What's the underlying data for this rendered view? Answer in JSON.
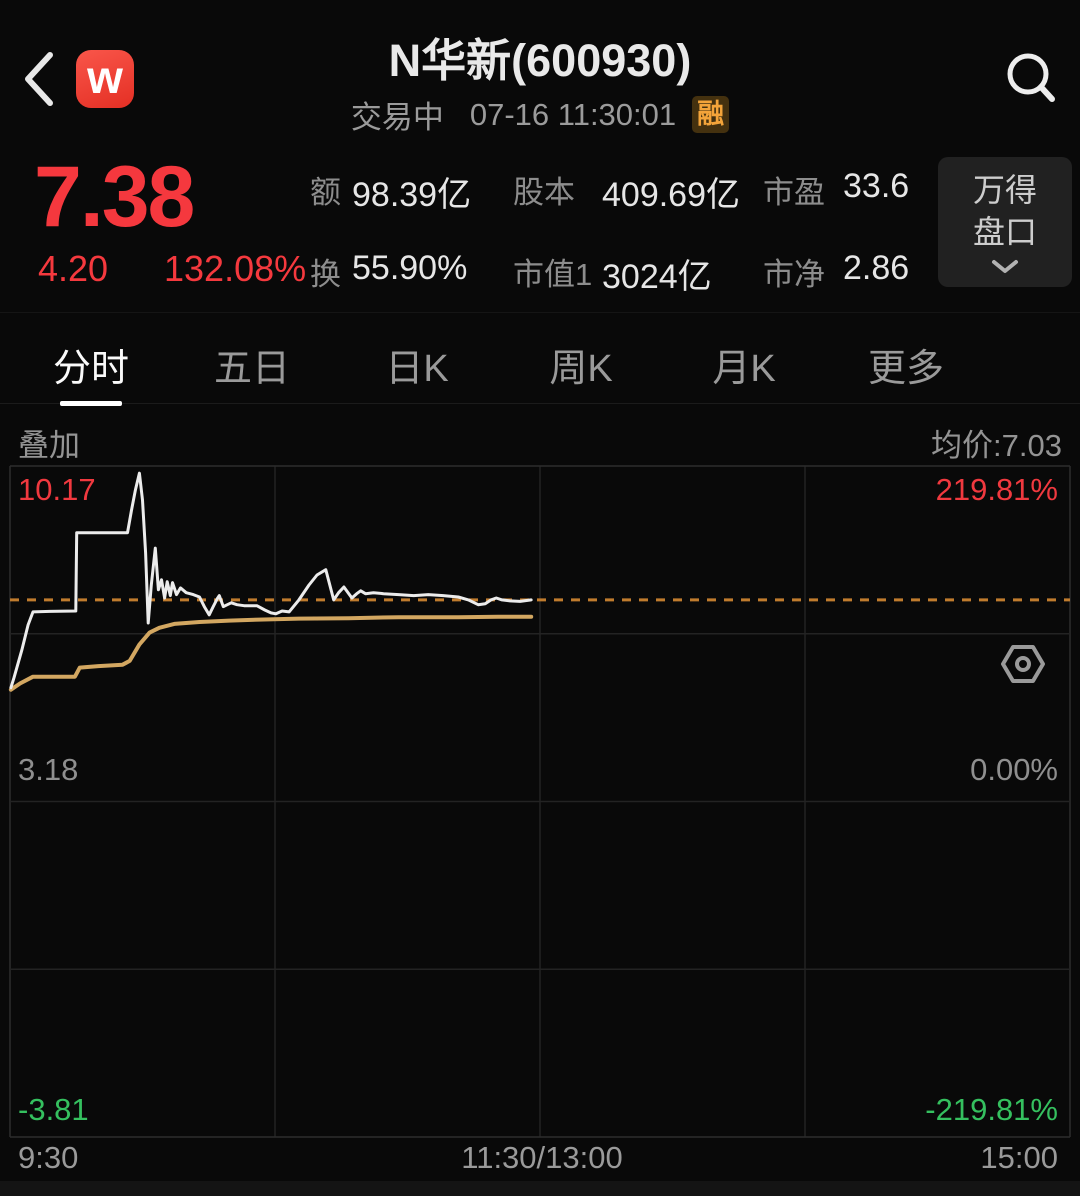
{
  "header": {
    "title": "N华新(600930)",
    "status": "交易中",
    "datetime": "07-16 11:30:01",
    "margin_badge": "融",
    "logo_letter": "w"
  },
  "quote": {
    "price": "7.38",
    "change": "4.20",
    "change_pct": "132.08%",
    "stats": [
      {
        "label": "额",
        "value": "98.39亿"
      },
      {
        "label": "股本",
        "value": "409.69亿"
      },
      {
        "label": "市盈",
        "value": "33.6"
      },
      {
        "label": "换",
        "value": "55.90%"
      },
      {
        "label": "市值1",
        "value": "3024亿"
      },
      {
        "label": "市净",
        "value": "2.86"
      }
    ],
    "panel_button": {
      "line1": "万得",
      "line2": "盘口"
    }
  },
  "tabs": [
    {
      "label": "分时",
      "active": true
    },
    {
      "label": "五日",
      "active": false
    },
    {
      "label": "日K",
      "active": false
    },
    {
      "label": "周K",
      "active": false
    },
    {
      "label": "月K",
      "active": false
    },
    {
      "label": "更多",
      "active": false
    }
  ],
  "overlay_label": "叠加",
  "avg_price_label": "均价:7.03",
  "colors": {
    "up_red": "#f5393e",
    "down_green": "#35c05f",
    "price_line": "#ececec",
    "avg_line": "#d3a761",
    "ref_line": "#c07c2e",
    "badge_orange": "#f3a43a"
  },
  "chart_data": {
    "type": "line",
    "title": "分时图 (intraday minute chart, trading halted at 11:30)",
    "x_axis": {
      "ticks": [
        "9:30",
        "11:30/13:00",
        "15:00"
      ],
      "total_minutes": 240,
      "data_minutes": 120
    },
    "y_axis": {
      "price_max": 10.17,
      "price_base": 3.18,
      "price_min": -3.81,
      "labels": {
        "top_left": "10.17",
        "top_right": "219.81%",
        "mid_left": "3.18",
        "mid_right": "0.00%",
        "bottom_left": "-3.81",
        "bottom_right": "-219.81%"
      }
    },
    "current_price": 7.38,
    "average_price": 7.03,
    "reference_line": {
      "value": 7.38,
      "color": "#c07c2e",
      "style": "dashed"
    },
    "grid": {
      "v_divisions": 4,
      "h_divisions": 4
    },
    "legend_position": "none",
    "series": [
      {
        "name": "price",
        "color": "#ececec",
        "width": 3,
        "points": [
          [
            0.2,
            5.55
          ],
          [
            0.9,
            5.76
          ],
          [
            2.7,
            6.34
          ],
          [
            4.1,
            6.86
          ],
          [
            5.2,
            7.13
          ],
          [
            9,
            7.14
          ],
          [
            14.9,
            7.15
          ],
          [
            15.1,
            8.78
          ],
          [
            26.6,
            8.78
          ],
          [
            27.5,
            9.25
          ],
          [
            28.4,
            9.67
          ],
          [
            29.3,
            10.02
          ],
          [
            30,
            9.46
          ],
          [
            30.7,
            8.36
          ],
          [
            31.3,
            6.9
          ],
          [
            32,
            7.69
          ],
          [
            32.9,
            8.46
          ],
          [
            33.6,
            7.59
          ],
          [
            34.3,
            7.8
          ],
          [
            35,
            7.42
          ],
          [
            35.6,
            7.76
          ],
          [
            36.3,
            7.47
          ],
          [
            36.8,
            7.74
          ],
          [
            37.7,
            7.49
          ],
          [
            38.6,
            7.63
          ],
          [
            39.9,
            7.53
          ],
          [
            41.5,
            7.49
          ],
          [
            42.9,
            7.44
          ],
          [
            44,
            7.24
          ],
          [
            45.1,
            7.07
          ],
          [
            46,
            7.24
          ],
          [
            46.9,
            7.4
          ],
          [
            47.4,
            7.47
          ],
          [
            48.3,
            7.24
          ],
          [
            49.2,
            7.28
          ],
          [
            50.1,
            7.32
          ],
          [
            51.4,
            7.28
          ],
          [
            53,
            7.26
          ],
          [
            55.9,
            7.26
          ],
          [
            57.7,
            7.17
          ],
          [
            59.1,
            7.11
          ],
          [
            60.2,
            7.09
          ],
          [
            61.6,
            7.15
          ],
          [
            63.2,
            7.13
          ],
          [
            65.4,
            7.38
          ],
          [
            67.7,
            7.69
          ],
          [
            69.5,
            7.9
          ],
          [
            71.5,
            8.01
          ],
          [
            72.4,
            7.69
          ],
          [
            73.3,
            7.38
          ],
          [
            74.4,
            7.53
          ],
          [
            75.6,
            7.65
          ],
          [
            76.7,
            7.51
          ],
          [
            77.4,
            7.42
          ],
          [
            78.5,
            7.51
          ],
          [
            79.4,
            7.57
          ],
          [
            80.5,
            7.51
          ],
          [
            82.3,
            7.53
          ],
          [
            84.6,
            7.51
          ],
          [
            88,
            7.49
          ],
          [
            91.4,
            7.47
          ],
          [
            94.7,
            7.49
          ],
          [
            98.1,
            7.47
          ],
          [
            101.5,
            7.44
          ],
          [
            103.8,
            7.38
          ],
          [
            106,
            7.28
          ],
          [
            107.6,
            7.3
          ],
          [
            108.9,
            7.38
          ],
          [
            110.1,
            7.42
          ],
          [
            111.4,
            7.38
          ],
          [
            113.2,
            7.36
          ],
          [
            115.5,
            7.35
          ],
          [
            118,
            7.38
          ]
        ]
      },
      {
        "name": "avg_price",
        "color": "#d3a761",
        "width": 4,
        "points": [
          [
            0.2,
            5.51
          ],
          [
            2.3,
            5.64
          ],
          [
            5.2,
            5.78
          ],
          [
            14.7,
            5.78
          ],
          [
            15.8,
            5.97
          ],
          [
            20,
            6.0
          ],
          [
            25.5,
            6.03
          ],
          [
            27.1,
            6.11
          ],
          [
            29.3,
            6.45
          ],
          [
            31.6,
            6.7
          ],
          [
            33.8,
            6.8
          ],
          [
            37.2,
            6.88
          ],
          [
            42.9,
            6.92
          ],
          [
            49.6,
            6.95
          ],
          [
            56.4,
            6.97
          ],
          [
            65.4,
            6.99
          ],
          [
            76.7,
            7.0
          ],
          [
            88,
            7.02
          ],
          [
            101.5,
            7.02
          ],
          [
            110.5,
            7.03
          ],
          [
            118,
            7.03
          ]
        ]
      }
    ]
  }
}
